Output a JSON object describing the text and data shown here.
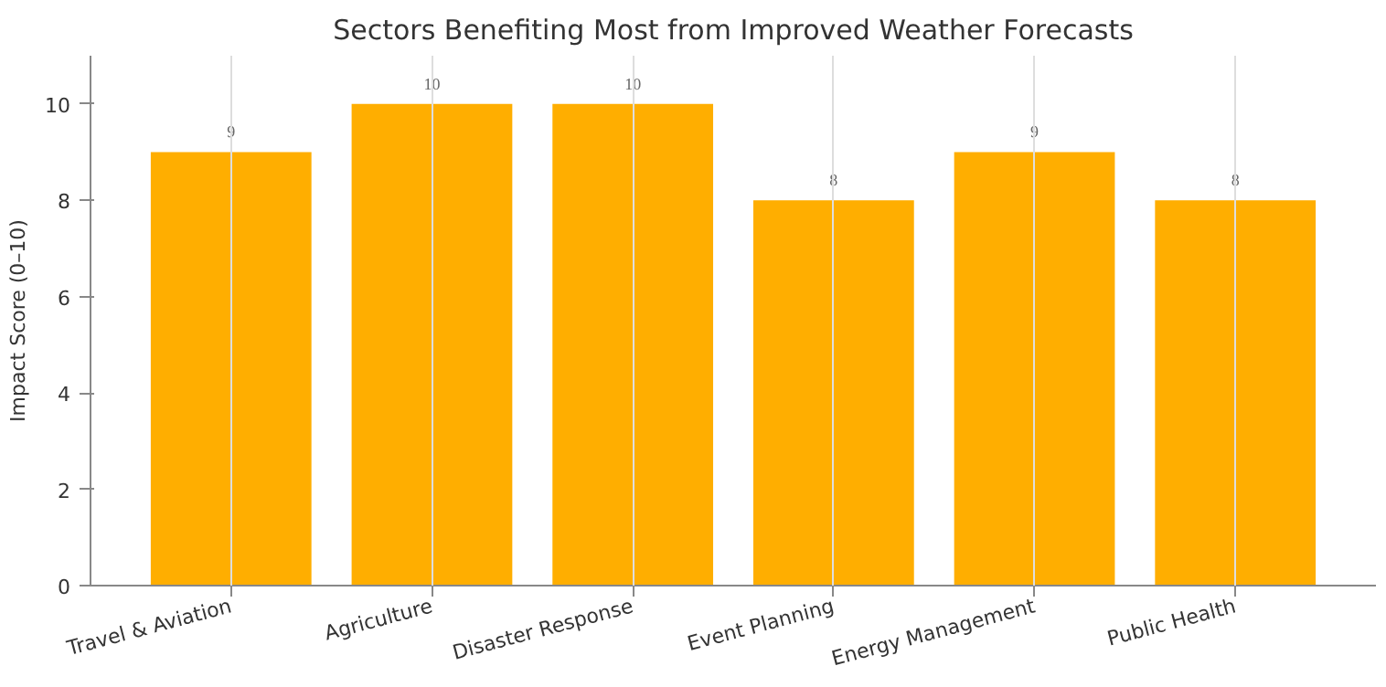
{
  "chart_data": {
    "type": "bar",
    "title": "Sectors Benefiting Most from Improved Weather Forecasts",
    "ylabel": "Impact Score (0–10)",
    "categories": [
      "Travel & Aviation",
      "Agriculture",
      "Disaster Response",
      "Event Planning",
      "Energy Management",
      "Public Health"
    ],
    "values": [
      9,
      10,
      10,
      8,
      9,
      8
    ],
    "color": "#ffae00",
    "ylim": [
      0,
      11
    ],
    "yticks": [
      0,
      2,
      4,
      6,
      8,
      10
    ],
    "grid": "x",
    "data_labels": true
  }
}
